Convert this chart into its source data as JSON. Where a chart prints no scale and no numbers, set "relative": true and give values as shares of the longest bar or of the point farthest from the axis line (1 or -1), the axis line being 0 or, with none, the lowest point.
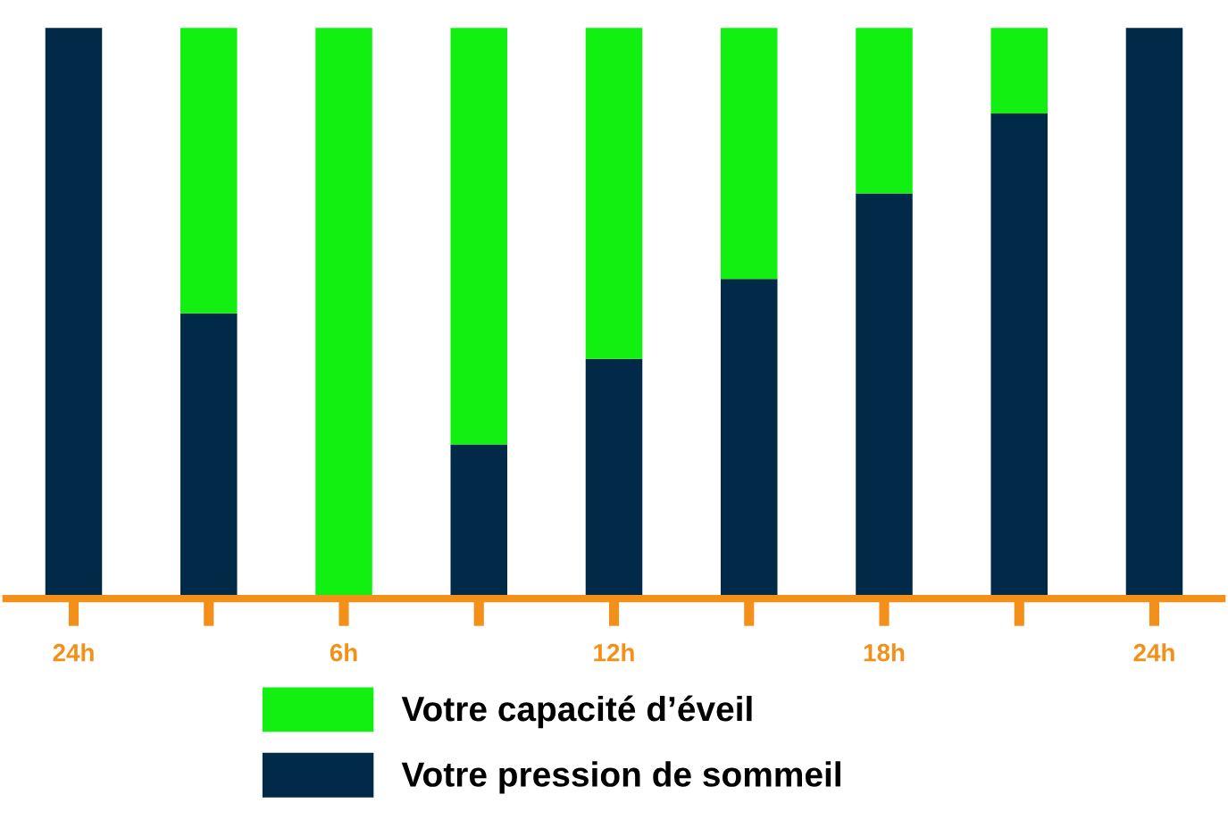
{
  "chart_data": {
    "type": "bar",
    "stacked": true,
    "relative": true,
    "categories": [
      "24h",
      null,
      "6h",
      null,
      "12h",
      null,
      "18h",
      null,
      "24h"
    ],
    "series": [
      {
        "name": "Votre pression de sommeil",
        "color": "#002a48",
        "values": [
          1,
          0.5,
          0,
          0.27,
          0.42,
          0.56,
          0.71,
          0.85,
          1
        ]
      },
      {
        "name": "Votre capacité d’éveil",
        "color": "#11f011",
        "values": [
          0,
          0.5,
          1,
          0.73,
          0.58,
          0.44,
          0.29,
          0.15,
          0
        ]
      }
    ],
    "legend": "bottom",
    "grid": false
  }
}
